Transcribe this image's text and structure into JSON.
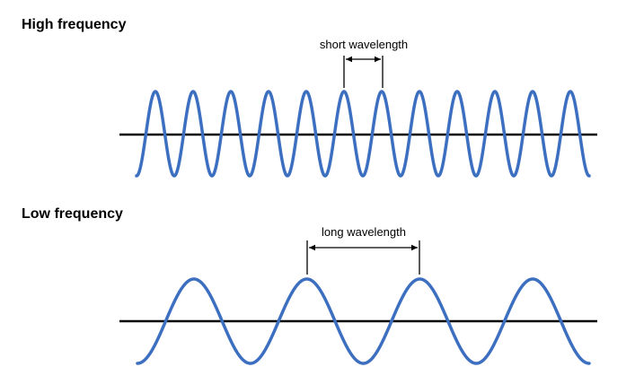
{
  "colors": {
    "wave": "#3d6fc0",
    "axis": "#000000"
  },
  "high": {
    "title": "High frequency",
    "wavelength_label": "short wavelength",
    "cycles": 12
  },
  "low": {
    "title": "Low frequency",
    "wavelength_label": "long wavelength",
    "cycles": 4
  }
}
